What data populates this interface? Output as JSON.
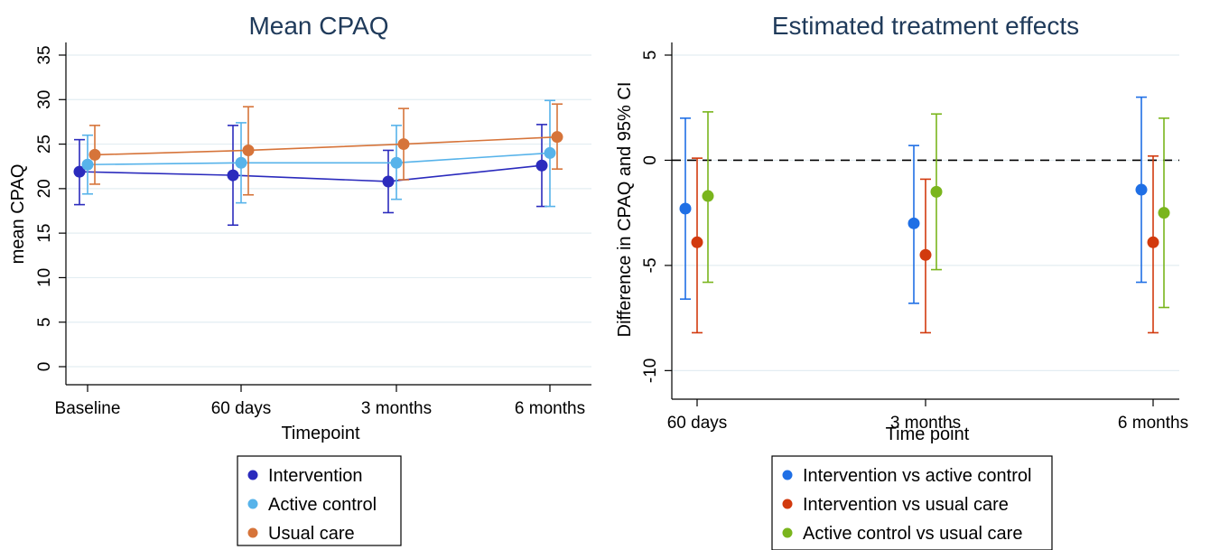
{
  "chart_data": [
    {
      "type": "line",
      "title": "Mean CPAQ",
      "xlabel": "Timepoint",
      "ylabel": "mean CPAQ",
      "categories": [
        "Baseline",
        "60 days",
        "3 months",
        "6 months"
      ],
      "ylim": [
        0,
        35
      ],
      "yticks": [
        0,
        5,
        10,
        15,
        20,
        25,
        30,
        35
      ],
      "grid": true,
      "legend_position": "bottom",
      "series": [
        {
          "name": "Intervention",
          "color": "#2b2bbd",
          "values": [
            21.9,
            21.5,
            20.8,
            22.6
          ],
          "lower": [
            18.2,
            15.9,
            17.3,
            18.0
          ],
          "upper": [
            25.5,
            27.1,
            24.3,
            27.2
          ]
        },
        {
          "name": "Active control",
          "color": "#57b3ea",
          "values": [
            22.7,
            22.9,
            22.9,
            24.0
          ],
          "lower": [
            19.4,
            18.4,
            18.8,
            18.0
          ],
          "upper": [
            26.0,
            27.4,
            27.1,
            29.9
          ]
        },
        {
          "name": "Usual care",
          "color": "#d6743a",
          "values": [
            23.8,
            24.3,
            25.0,
            25.8
          ],
          "lower": [
            20.5,
            19.3,
            21.0,
            22.2
          ],
          "upper": [
            27.1,
            29.2,
            29.0,
            29.5
          ]
        }
      ]
    },
    {
      "type": "scatter",
      "title": "Estimated treatment effects",
      "xlabel": "Time point",
      "ylabel": "Difference in CPAQ and 95% CI",
      "categories": [
        "60 days",
        "3 months",
        "6 months"
      ],
      "ylim": [
        -10.5,
        5
      ],
      "yticks": [
        -10,
        -5,
        0,
        5
      ],
      "reference_line": 0,
      "grid": true,
      "legend_position": "bottom",
      "series": [
        {
          "name": "Intervention vs active control",
          "color": "#1f6fe5",
          "values": [
            -2.3,
            -3.0,
            -1.4
          ],
          "lower": [
            -6.6,
            -6.8,
            -5.8
          ],
          "upper": [
            2.0,
            0.7,
            3.0
          ]
        },
        {
          "name": "Intervention vs usual care",
          "color": "#d23a0e",
          "values": [
            -3.9,
            -4.5,
            -3.9
          ],
          "lower": [
            -8.2,
            -8.2,
            -8.2
          ],
          "upper": [
            0.1,
            -0.9,
            0.2
          ]
        },
        {
          "name": "Active control vs usual care",
          "color": "#7ab51d",
          "values": [
            -1.7,
            -1.5,
            -2.5
          ],
          "lower": [
            -5.8,
            -5.2,
            -7.0
          ],
          "upper": [
            2.3,
            2.2,
            2.0
          ]
        }
      ]
    }
  ]
}
